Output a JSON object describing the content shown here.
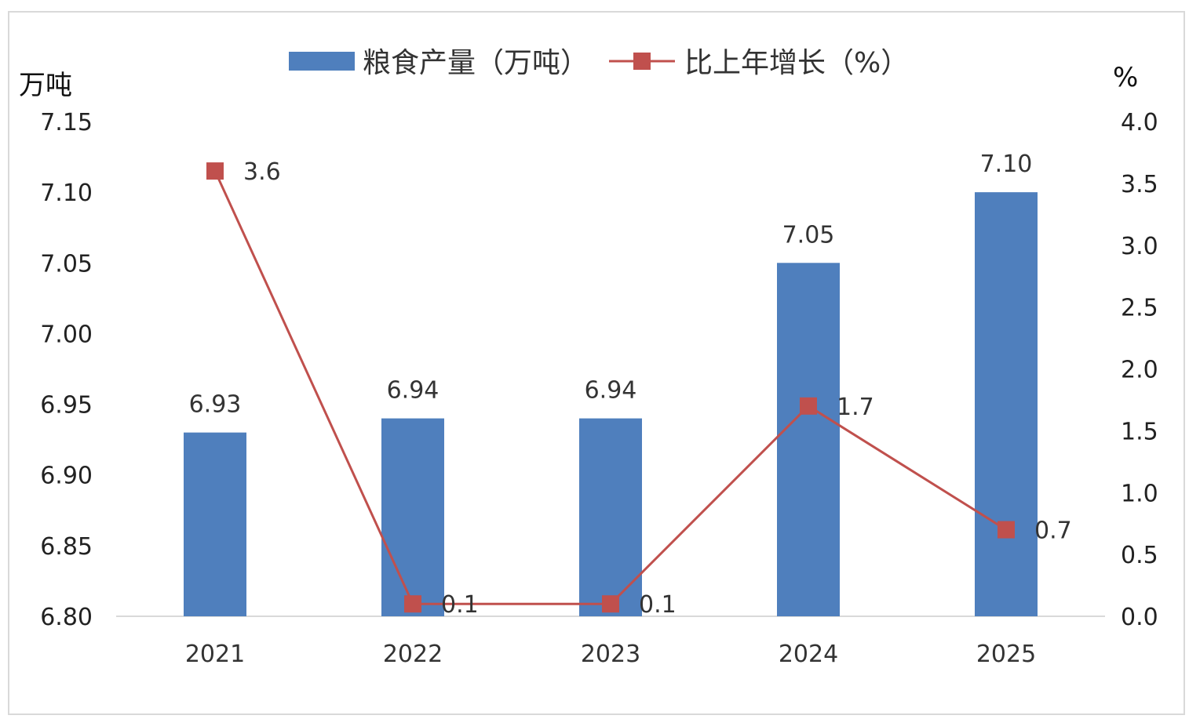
{
  "chart_data": {
    "type": "bar",
    "categories": [
      "2021",
      "2022",
      "2023",
      "2024",
      "2025"
    ],
    "series": [
      {
        "name": "粮食产量（万吨）",
        "type": "bar",
        "axis": "left",
        "values": [
          6.93,
          6.94,
          6.94,
          7.05,
          7.1
        ],
        "labels": [
          "6.93",
          "6.94",
          "6.94",
          "7.05",
          "7.10"
        ]
      },
      {
        "name": "比上年增长（%）",
        "type": "line",
        "axis": "right",
        "values": [
          3.6,
          0.1,
          0.1,
          1.7,
          0.7
        ],
        "labels": [
          "3.6",
          "0.1",
          "0.1",
          "1.7",
          "0.7"
        ]
      }
    ],
    "left_axis": {
      "unit": "万吨",
      "ylim": [
        6.8,
        7.15
      ],
      "ticks": [
        "6.80",
        "6.85",
        "6.90",
        "6.95",
        "7.00",
        "7.05",
        "7.10",
        "7.15"
      ]
    },
    "right_axis": {
      "unit": "%",
      "ylim": [
        0.0,
        4.0
      ],
      "ticks": [
        "0.0",
        "0.5",
        "1.0",
        "1.5",
        "2.0",
        "2.5",
        "3.0",
        "3.5",
        "4.0"
      ]
    },
    "legend": {
      "position": "top"
    },
    "grid": false,
    "colors": {
      "bar": "#4f7fbd",
      "line": "#c0504d"
    }
  }
}
